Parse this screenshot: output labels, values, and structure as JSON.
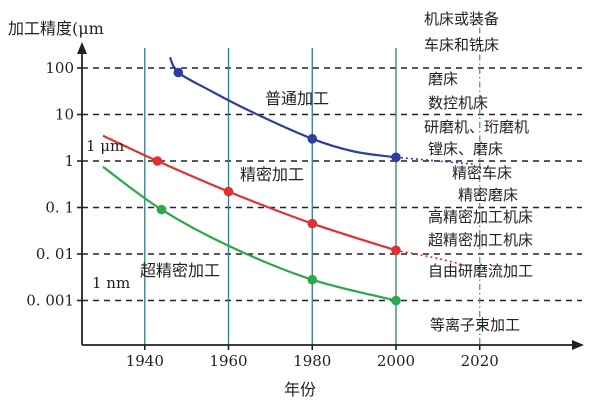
{
  "chart_data": {
    "type": "line",
    "title": "",
    "ylabel": "加工精度(μm",
    "xlabel": "年份",
    "x_ticks": [
      "1940",
      "1960",
      "1980",
      "2000",
      "2020"
    ],
    "y_ticks": [
      "100",
      "10",
      "1",
      "0. 1",
      "0. 01",
      "0. 001"
    ],
    "y_scale": "log",
    "xlim": [
      1925,
      2043
    ],
    "ylim": [
      0.00025,
      400
    ],
    "grid": "dashed horizontal at decades; solid vertical at 1940-2000; dash-dot vertical at 2020",
    "annotations": [
      "1 μm",
      "1 nm"
    ],
    "series": [
      {
        "name": "普通加工",
        "color": "#2e3d9e",
        "points": [
          [
            1948,
            80
          ],
          [
            1980,
            3
          ],
          [
            2000,
            1.2
          ]
        ],
        "curve": [
          [
            1946,
            170
          ],
          [
            1948,
            80
          ],
          [
            1955,
            35
          ],
          [
            1965,
            12
          ],
          [
            1980,
            3
          ],
          [
            1990,
            1.6
          ],
          [
            2000,
            1.2
          ]
        ],
        "extension": [
          [
            2000,
            1.2
          ],
          [
            2010,
            1.0
          ],
          [
            2019,
            0.85
          ]
        ]
      },
      {
        "name": "精密加工",
        "color": "#e03030",
        "points": [
          [
            1943,
            1
          ],
          [
            1960,
            0.22
          ],
          [
            1980,
            0.045
          ],
          [
            2000,
            0.012
          ]
        ],
        "curve": [
          [
            1930,
            3.5
          ],
          [
            1943,
            1
          ],
          [
            1960,
            0.22
          ],
          [
            1980,
            0.045
          ],
          [
            2000,
            0.012
          ]
        ],
        "extension": [
          [
            2000,
            0.012
          ],
          [
            2010,
            0.008
          ],
          [
            2019,
            0.005
          ]
        ]
      },
      {
        "name": "超精密加工",
        "color": "#2aa84a",
        "points": [
          [
            1944,
            0.09
          ],
          [
            1980,
            0.0028
          ],
          [
            2000,
            0.001
          ]
        ],
        "curve": [
          [
            1930,
            0.75
          ],
          [
            1944,
            0.09
          ],
          [
            1960,
            0.015
          ],
          [
            1980,
            0.0028
          ],
          [
            2000,
            0.001
          ]
        ],
        "extension": []
      }
    ],
    "equipment_header": "机床或装备",
    "equipment": [
      "车床和铣床",
      "磨床",
      "数控机床",
      "研磨机、珩磨机",
      "镗床、磨床",
      "精密车床",
      "精密磨床",
      "高精密加工机床",
      "超精密加工机床",
      "自由研磨流加工",
      "等离子束加工"
    ]
  }
}
